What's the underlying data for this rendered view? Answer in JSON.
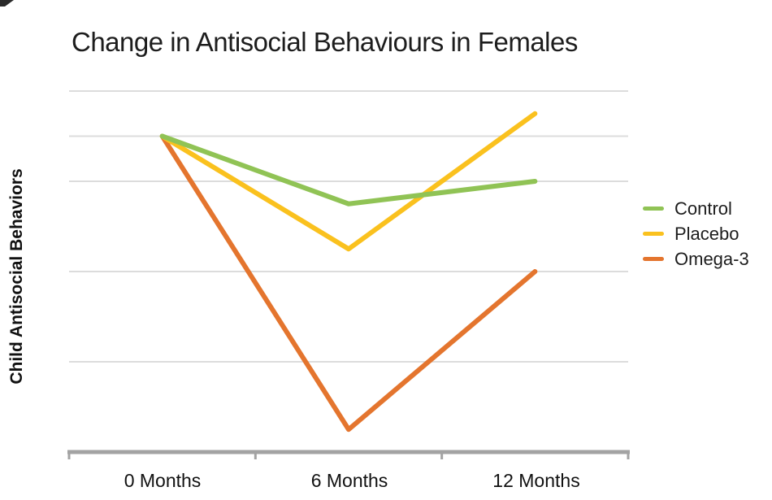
{
  "chart_data": {
    "type": "line",
    "title": "Change in Antisocial Behaviours in Females",
    "ylabel": "Child Antisocial Behaviors",
    "xlabel": "",
    "categories": [
      "0 Months",
      "6 Months",
      "12 Months"
    ],
    "series": [
      {
        "name": "Control",
        "color": "#90C355",
        "values": [
          7,
          5.5,
          6
        ]
      },
      {
        "name": "Placebo",
        "color": "#FAC11E",
        "values": [
          7,
          4.5,
          7.5
        ]
      },
      {
        "name": "Omega-3",
        "color": "#E4752E",
        "values": [
          7,
          0.5,
          4
        ]
      }
    ],
    "y_axis": {
      "tick_labels_visible": false,
      "min": 0,
      "max": 8,
      "gridline_values": [
        8,
        7,
        6,
        4,
        2
      ],
      "note": "axis unlabeled; values estimated in gridline units"
    },
    "x_axis": {
      "tick_style": "category-boundaries"
    },
    "legend_position": "right",
    "grid": "horizontal-only",
    "colors": {
      "gridline": "#DCDCDC",
      "axis": "#A3A3A3",
      "text": "#1D1D1D",
      "background": "#FFFFFF"
    }
  }
}
